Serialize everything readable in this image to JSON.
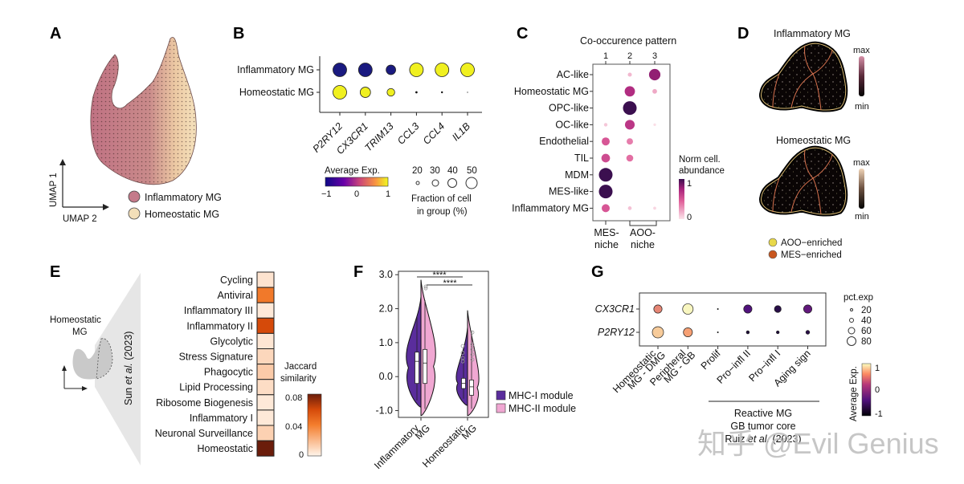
{
  "panels": {
    "A": {
      "label": "A",
      "xaxis": "UMAP 2",
      "yaxis": "UMAP 1",
      "legend": [
        {
          "name": "Inflammatory MG",
          "color": "#c47a8a"
        },
        {
          "name": "Homeostatic MG",
          "color": "#f3dfb9"
        }
      ]
    },
    "B": {
      "label": "B",
      "colorbar_title": "Average Exp.",
      "colorbar_ticks": [
        "−1",
        "0",
        "1"
      ],
      "size_legend_values": [
        "20",
        "30",
        "40",
        "50"
      ],
      "size_legend_title_1": "Fraction of cell",
      "size_legend_title_2": "in group (%)"
    },
    "C": {
      "label": "C",
      "title": "Co-occurence pattern",
      "niche_1": [
        "MES-",
        "niche"
      ],
      "niche_2": [
        "AOO-",
        "niche"
      ],
      "colorbar_title_1": "Norm cell.",
      "colorbar_title_2": "abundance",
      "colorbar_ticks": [
        "1",
        "0"
      ]
    },
    "D": {
      "label": "D",
      "map_titles": [
        "Inflammatory MG",
        "Homeostatic MG"
      ],
      "scale_max": "max",
      "scale_min": "min",
      "legend": [
        {
          "name": "AOO−enriched",
          "color": "#e8d84a"
        },
        {
          "name": "MES−enriched",
          "color": "#c8561e"
        }
      ]
    },
    "E": {
      "label": "E",
      "inset_label_1": "Homeostatic",
      "inset_label_2": "MG",
      "source_prefix": "Sun ",
      "source_italic": "et al.",
      "source_suffix": " (2023)",
      "colorbar_title_1": "Jaccard",
      "colorbar_title_2": "similarity",
      "colorbar_ticks": [
        "0.08",
        "0.04",
        "0"
      ]
    },
    "F": {
      "label": "F",
      "significance": [
        "****",
        "****"
      ],
      "legend": [
        {
          "name": "MHC-I module",
          "color": "#5a2d9c"
        },
        {
          "name": "MHC-II module",
          "color": "#f0a7d2"
        }
      ]
    },
    "G": {
      "label": "G",
      "group_title_1": "Reactive MG",
      "group_title_2": "GB tumor core",
      "group_title_3_prefix": "Ruiz ",
      "group_title_3_italic": "et al.",
      "group_title_3_suffix": " (2023)",
      "size_legend_title": "pct.exp",
      "size_legend_values": [
        "20",
        "40",
        "60",
        "80"
      ],
      "colorbar_title": "Average Exp.",
      "colorbar_ticks": [
        "1",
        "0",
        "-1"
      ]
    }
  },
  "watermark": "知乎 @Evil Genius",
  "chart_data": [
    {
      "panel": "B",
      "type": "scatter",
      "title": "",
      "rows": [
        "Inflammatory MG",
        "Homeostatic MG"
      ],
      "categories": [
        "P2RY12",
        "CX3CR1",
        "TRIM13",
        "CCL3",
        "CCL4",
        "IL1B"
      ],
      "series": [
        {
          "name": "Inflammatory MG",
          "avg_exp": [
            -1,
            -1,
            -1,
            1,
            1,
            1
          ],
          "pct": [
            50,
            50,
            35,
            50,
            50,
            50
          ]
        },
        {
          "name": "Homeostatic MG",
          "avg_exp": [
            1,
            1,
            1,
            -1,
            -1,
            -1
          ],
          "pct": [
            50,
            38,
            28,
            8,
            4,
            0
          ]
        }
      ],
      "color_range": [
        -1,
        1
      ],
      "size_legend": [
        20,
        30,
        40,
        50
      ]
    },
    {
      "panel": "C",
      "type": "scatter",
      "title": "Co-occurence pattern",
      "columns": [
        "1",
        "2",
        "3"
      ],
      "rows": [
        "AC-like",
        "Homeostatic MG",
        "OPC-like",
        "OC-like",
        "Endothelial",
        "TIL",
        "MDM",
        "MES-like",
        "Inflammatory MG"
      ],
      "values": [
        [
          0.0,
          0.15,
          0.8
        ],
        [
          0.0,
          0.7,
          0.2
        ],
        [
          0.0,
          1.0,
          0.0
        ],
        [
          0.1,
          0.65,
          0.02
        ],
        [
          0.5,
          0.35,
          0.0
        ],
        [
          0.55,
          0.4,
          0.0
        ],
        [
          1.0,
          0.0,
          0.0
        ],
        [
          1.0,
          0.0,
          0.0
        ],
        [
          0.5,
          0.12,
          0.05
        ]
      ],
      "niche_groups": [
        {
          "name": "MES-niche",
          "columns": [
            "1"
          ]
        },
        {
          "name": "AOO-niche",
          "columns": [
            "2",
            "3"
          ]
        }
      ],
      "color_range": [
        0,
        1
      ]
    },
    {
      "panel": "E",
      "type": "heatmap",
      "rows": [
        "Cycling",
        "Antiviral",
        "Inflammatory III",
        "Inflammatory II",
        "Glycolytic",
        "Stress Signature",
        "Phagocytic",
        "Lipid Processing",
        "Ribosome Biogenesis",
        "Inflammatory I",
        "Neuronal Surveillance",
        "Homeostatic"
      ],
      "values": [
        0.006,
        0.042,
        0.004,
        0.06,
        0.005,
        0.01,
        0.014,
        0.008,
        0.004,
        0.004,
        0.012,
        0.08
      ],
      "color_range": [
        0,
        0.08
      ],
      "colorbar_label": "Jaccard similarity"
    },
    {
      "panel": "F",
      "type": "violin",
      "categories": [
        "Inflammatory MG",
        "Homeostatic MG"
      ],
      "series": [
        {
          "name": "MHC-I module",
          "median": [
            0.45,
            -0.2
          ],
          "q1": [
            -0.2,
            -0.35
          ],
          "q3": [
            0.72,
            -0.05
          ],
          "min": [
            -0.7,
            -0.65
          ],
          "max": [
            1.75,
            0.85
          ]
        },
        {
          "name": "MHC-II module",
          "median": [
            0.4,
            -0.3
          ],
          "q1": [
            -0.2,
            -0.55
          ],
          "q3": [
            0.8,
            -0.1
          ],
          "min": [
            -0.95,
            -0.95
          ],
          "max": [
            2.25,
            1.35
          ]
        }
      ],
      "yticks": [
        "3.0",
        "2.0",
        "1.0",
        "0.0",
        "-1.0"
      ],
      "ylim": [
        -1.2,
        3.1
      ],
      "significance": [
        "****",
        "****"
      ]
    },
    {
      "panel": "G",
      "type": "scatter",
      "rows": [
        "CX3CR1",
        "P2RY12"
      ],
      "categories": [
        "Homeostatic MG - DMG",
        "Peripheral MG - GB",
        "Prolif",
        "Pro−infl II",
        "Pro−infl I",
        "Aging sign"
      ],
      "series": [
        {
          "name": "CX3CR1",
          "avg_exp": [
            0.5,
            1.0,
            -1.0,
            -0.4,
            -0.8,
            -0.3
          ],
          "pct": [
            55,
            70,
            10,
            55,
            45,
            55
          ]
        },
        {
          "name": "P2RY12",
          "avg_exp": [
            0.8,
            0.6,
            -1.0,
            -0.9,
            -0.9,
            -0.8
          ],
          "pct": [
            75,
            60,
            5,
            20,
            15,
            25
          ]
        }
      ],
      "color_range": [
        -1,
        1
      ],
      "size_legend": [
        20,
        40,
        60,
        80
      ]
    }
  ]
}
